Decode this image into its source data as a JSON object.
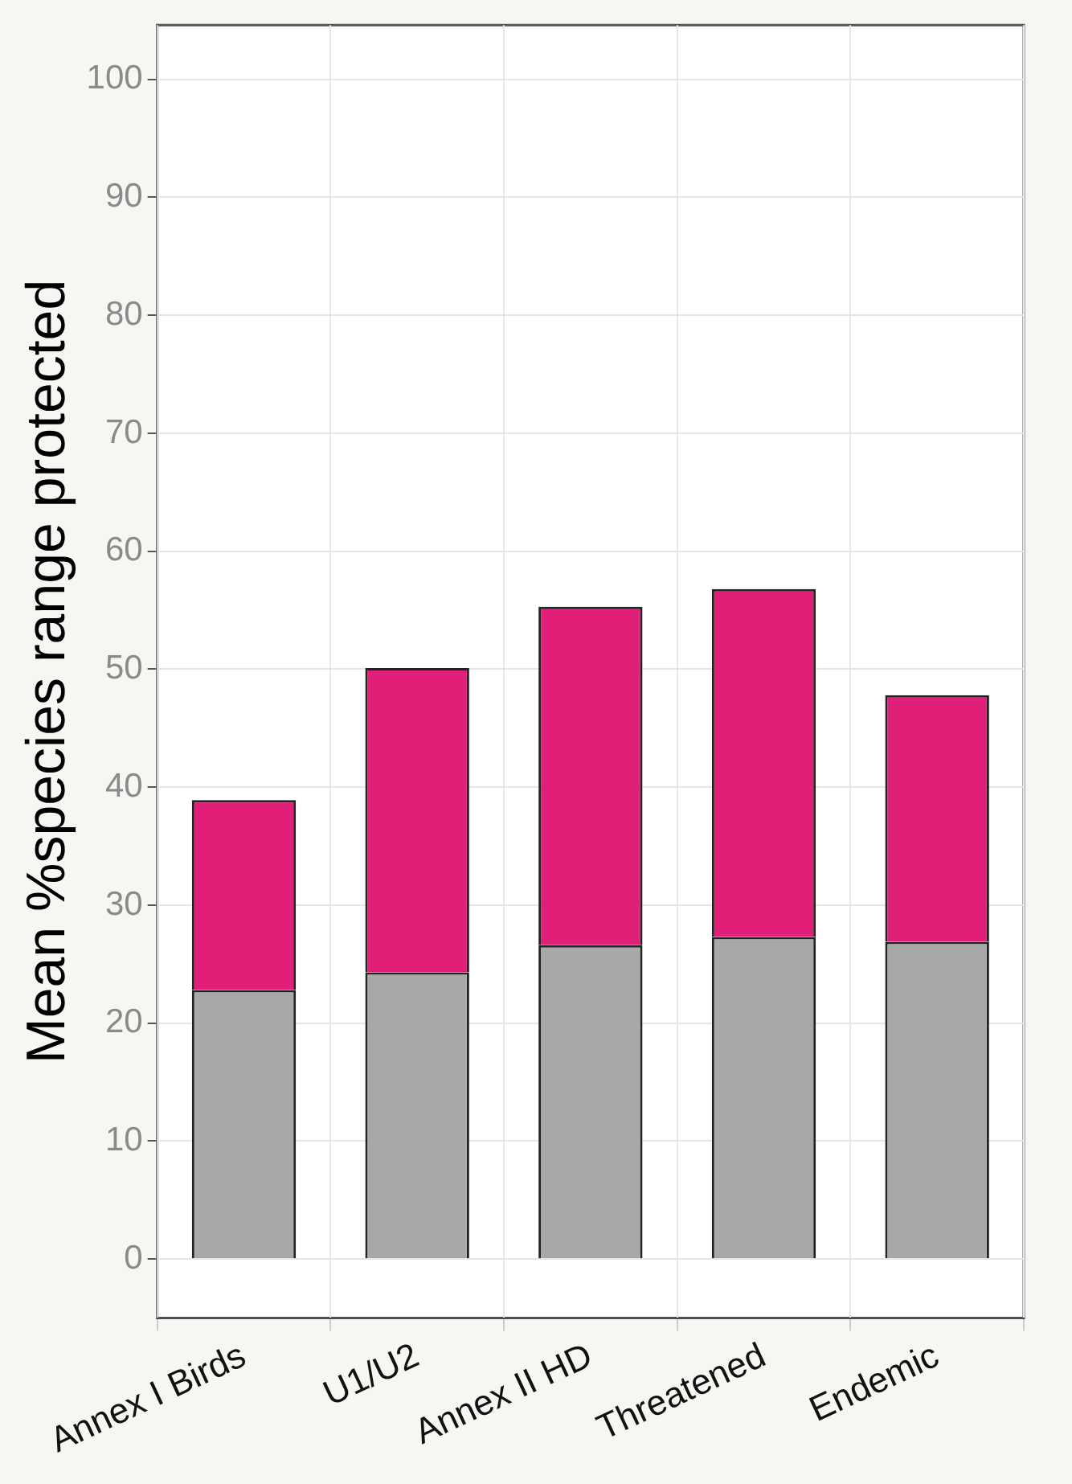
{
  "chart_data": {
    "type": "bar",
    "stacked": true,
    "ylabel": "Mean %species range protected",
    "categories": [
      "Annex I Birds",
      "U1/U2",
      "Annex II HD",
      "Threatened",
      "Endemic"
    ],
    "series": [
      {
        "color": "#a8a8a8",
        "values": [
          22.8,
          24.3,
          26.6,
          27.3,
          26.9
        ]
      },
      {
        "color": "#e01f78",
        "values": [
          16.1,
          25.8,
          28.7,
          29.5,
          20.9
        ]
      }
    ],
    "ylim": [
      -5,
      104.6
    ],
    "yticks": [
      0,
      10,
      20,
      30,
      40,
      50,
      60,
      70,
      80,
      90,
      100
    ],
    "grid": true,
    "legend": false
  }
}
